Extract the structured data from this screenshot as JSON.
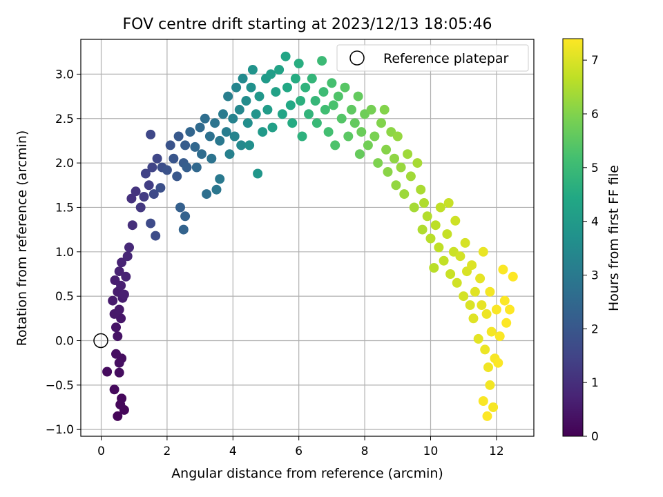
{
  "chart_data": {
    "type": "scatter",
    "title": "FOV centre drift starting at 2023/12/13 18:05:46",
    "xlabel": "Angular distance from reference (arcmin)",
    "ylabel": "Rotation from reference (arcmin)",
    "xlim": [
      -0.6,
      13.1
    ],
    "ylim": [
      -1.08,
      3.42
    ],
    "x_ticks": [
      "0",
      "2",
      "4",
      "6",
      "8",
      "10",
      "12"
    ],
    "y_ticks": [
      "−1.0",
      "−0.5",
      "0.0",
      "0.5",
      "1.0",
      "1.5",
      "2.0",
      "2.5",
      "3.0"
    ],
    "grid": true,
    "legend": {
      "position": "top-right",
      "label": "Reference platepar"
    },
    "reference_point": {
      "x": 0,
      "y": 0
    },
    "colorbar": {
      "label": "Hours from first FF file",
      "colormap": "viridis",
      "range": [
        0,
        7.4
      ],
      "ticks": [
        "0",
        "1",
        "2",
        "3",
        "4",
        "5",
        "6",
        "7"
      ]
    },
    "series": [
      {
        "points": [
          [
            0.5,
            -0.85,
            0.1
          ],
          [
            0.7,
            -0.78,
            0.12
          ],
          [
            0.58,
            -0.72,
            0.14
          ],
          [
            0.62,
            -0.65,
            0.15
          ],
          [
            0.4,
            -0.55,
            0.18
          ],
          [
            0.18,
            -0.35,
            0.22
          ],
          [
            0.55,
            -0.36,
            0.25
          ],
          [
            0.62,
            -0.2,
            0.27
          ],
          [
            0.45,
            -0.15,
            0.29
          ],
          [
            0.55,
            -0.25,
            0.3
          ],
          [
            0.5,
            0.05,
            0.38
          ],
          [
            0.45,
            0.15,
            0.4
          ],
          [
            0.6,
            0.25,
            0.45
          ],
          [
            0.4,
            0.3,
            0.48
          ],
          [
            0.55,
            0.35,
            0.5
          ],
          [
            0.35,
            0.45,
            0.55
          ],
          [
            0.5,
            0.55,
            0.58
          ],
          [
            0.65,
            0.48,
            0.6
          ],
          [
            0.42,
            0.68,
            0.62
          ],
          [
            0.6,
            0.62,
            0.65
          ],
          [
            0.7,
            0.52,
            0.66
          ],
          [
            0.55,
            0.78,
            0.7
          ],
          [
            0.75,
            0.72,
            0.72
          ],
          [
            0.62,
            0.88,
            0.75
          ],
          [
            0.8,
            0.95,
            0.8
          ],
          [
            0.85,
            1.05,
            0.85
          ],
          [
            0.95,
            1.3,
            1.0
          ],
          [
            0.92,
            1.6,
            1.05
          ],
          [
            1.05,
            1.68,
            1.1
          ],
          [
            1.2,
            1.5,
            1.2
          ],
          [
            1.3,
            1.62,
            1.3
          ],
          [
            1.45,
            1.75,
            1.35
          ],
          [
            1.35,
            1.88,
            1.45
          ],
          [
            1.55,
            1.95,
            1.5
          ],
          [
            1.5,
            2.32,
            1.6
          ],
          [
            1.7,
            2.05,
            1.55
          ],
          [
            1.6,
            1.65,
            1.65
          ],
          [
            1.5,
            1.32,
            1.68
          ],
          [
            1.65,
            1.18,
            1.7
          ],
          [
            1.85,
            1.95,
            1.75
          ],
          [
            1.8,
            1.72,
            1.8
          ],
          [
            2.0,
            1.92,
            1.85
          ],
          [
            2.1,
            2.2,
            1.9
          ],
          [
            2.2,
            2.05,
            1.95
          ],
          [
            2.3,
            1.85,
            2.0
          ],
          [
            2.35,
            2.3,
            2.05
          ],
          [
            2.5,
            2.0,
            2.1
          ],
          [
            2.55,
            2.2,
            2.15
          ],
          [
            2.6,
            1.95,
            2.2
          ],
          [
            2.4,
            1.5,
            2.25
          ],
          [
            2.55,
            1.4,
            2.3
          ],
          [
            2.5,
            1.25,
            2.35
          ],
          [
            2.7,
            2.35,
            2.4
          ],
          [
            2.85,
            2.18,
            2.45
          ],
          [
            2.9,
            1.95,
            2.5
          ],
          [
            3.0,
            2.4,
            2.55
          ],
          [
            3.05,
            2.1,
            2.6
          ],
          [
            3.15,
            2.5,
            2.65
          ],
          [
            3.2,
            1.65,
            2.7
          ],
          [
            3.3,
            2.3,
            2.75
          ],
          [
            3.35,
            2.05,
            2.8
          ],
          [
            3.45,
            2.45,
            2.85
          ],
          [
            3.5,
            1.7,
            2.9
          ],
          [
            3.6,
            2.25,
            2.95
          ],
          [
            3.6,
            1.82,
            3.0
          ],
          [
            3.7,
            2.55,
            3.05
          ],
          [
            3.8,
            2.35,
            3.1
          ],
          [
            3.85,
            2.75,
            3.15
          ],
          [
            3.9,
            2.1,
            3.2
          ],
          [
            4.0,
            2.5,
            3.25
          ],
          [
            4.05,
            2.3,
            3.3
          ],
          [
            4.1,
            2.85,
            3.35
          ],
          [
            4.2,
            2.6,
            3.4
          ],
          [
            4.25,
            2.2,
            3.45
          ],
          [
            4.3,
            2.95,
            3.5
          ],
          [
            4.4,
            2.7,
            3.55
          ],
          [
            4.45,
            2.45,
            3.6
          ],
          [
            4.5,
            2.2,
            3.65
          ],
          [
            4.55,
            2.85,
            3.7
          ],
          [
            4.6,
            3.05,
            3.75
          ],
          [
            4.7,
            2.55,
            3.8
          ],
          [
            4.75,
            1.88,
            3.85
          ],
          [
            4.8,
            2.75,
            3.9
          ],
          [
            4.9,
            2.35,
            3.95
          ],
          [
            5.0,
            2.95,
            4.0
          ],
          [
            5.05,
            2.6,
            4.05
          ],
          [
            5.15,
            3.0,
            4.1
          ],
          [
            5.2,
            2.4,
            4.15
          ],
          [
            5.3,
            2.8,
            4.2
          ],
          [
            5.4,
            3.05,
            4.25
          ],
          [
            5.5,
            2.55,
            4.3
          ],
          [
            5.6,
            3.2,
            4.35
          ],
          [
            5.65,
            2.85,
            4.4
          ],
          [
            5.75,
            2.65,
            4.45
          ],
          [
            5.8,
            2.45,
            4.5
          ],
          [
            5.9,
            2.95,
            4.55
          ],
          [
            6.0,
            3.12,
            4.6
          ],
          [
            6.05,
            2.7,
            4.65
          ],
          [
            6.1,
            2.3,
            4.7
          ],
          [
            6.2,
            2.85,
            4.75
          ],
          [
            6.3,
            2.55,
            4.8
          ],
          [
            6.4,
            2.95,
            4.85
          ],
          [
            6.5,
            2.7,
            4.9
          ],
          [
            6.55,
            2.45,
            4.95
          ],
          [
            6.7,
            3.15,
            5.0
          ],
          [
            6.75,
            2.8,
            5.05
          ],
          [
            6.8,
            2.6,
            5.1
          ],
          [
            6.9,
            2.35,
            5.15
          ],
          [
            7.0,
            2.9,
            5.2
          ],
          [
            7.05,
            2.65,
            5.25
          ],
          [
            7.1,
            2.2,
            5.3
          ],
          [
            7.2,
            2.75,
            5.35
          ],
          [
            7.3,
            2.5,
            5.4
          ],
          [
            7.4,
            2.85,
            5.45
          ],
          [
            7.5,
            2.3,
            5.5
          ],
          [
            7.6,
            2.6,
            5.55
          ],
          [
            7.7,
            2.45,
            5.6
          ],
          [
            7.8,
            2.75,
            5.62
          ],
          [
            7.85,
            2.1,
            5.65
          ],
          [
            7.9,
            2.35,
            5.7
          ],
          [
            8.0,
            2.55,
            5.75
          ],
          [
            8.1,
            2.2,
            5.8
          ],
          [
            8.2,
            2.6,
            5.85
          ],
          [
            8.3,
            2.3,
            5.9
          ],
          [
            8.4,
            2.0,
            5.95
          ],
          [
            8.5,
            2.45,
            6.0
          ],
          [
            8.6,
            2.6,
            6.02
          ],
          [
            8.65,
            2.15,
            6.05
          ],
          [
            8.7,
            1.9,
            6.1
          ],
          [
            8.8,
            2.35,
            6.12
          ],
          [
            8.9,
            2.05,
            6.15
          ],
          [
            8.95,
            1.75,
            6.2
          ],
          [
            9.0,
            2.3,
            6.22
          ],
          [
            9.1,
            1.95,
            6.25
          ],
          [
            9.2,
            1.65,
            6.3
          ],
          [
            9.3,
            2.1,
            6.32
          ],
          [
            9.4,
            1.85,
            6.35
          ],
          [
            9.5,
            1.5,
            6.4
          ],
          [
            9.6,
            2.0,
            6.42
          ],
          [
            9.7,
            1.7,
            6.45
          ],
          [
            9.75,
            1.25,
            6.5
          ],
          [
            9.8,
            1.55,
            6.52
          ],
          [
            9.9,
            1.4,
            6.55
          ],
          [
            10.0,
            1.15,
            6.6
          ],
          [
            10.1,
            0.82,
            6.62
          ],
          [
            10.15,
            1.3,
            6.65
          ],
          [
            10.25,
            1.05,
            6.68
          ],
          [
            10.3,
            1.5,
            6.7
          ],
          [
            10.4,
            0.9,
            6.72
          ],
          [
            10.5,
            1.2,
            6.75
          ],
          [
            10.55,
            1.55,
            6.78
          ],
          [
            10.6,
            0.75,
            6.8
          ],
          [
            10.7,
            1.0,
            6.82
          ],
          [
            10.75,
            1.35,
            6.85
          ],
          [
            10.8,
            0.65,
            6.88
          ],
          [
            10.9,
            0.95,
            6.9
          ],
          [
            11.0,
            0.5,
            6.92
          ],
          [
            11.05,
            1.1,
            6.95
          ],
          [
            11.1,
            0.78,
            6.97
          ],
          [
            11.2,
            0.4,
            7.0
          ],
          [
            11.25,
            0.85,
            7.02
          ],
          [
            11.3,
            0.25,
            7.05
          ],
          [
            11.35,
            0.55,
            7.07
          ],
          [
            11.45,
            0.02,
            7.1
          ],
          [
            11.5,
            0.7,
            7.12
          ],
          [
            11.55,
            0.4,
            7.15
          ],
          [
            11.6,
            1.0,
            7.17
          ],
          [
            11.65,
            -0.1,
            7.2
          ],
          [
            11.7,
            0.3,
            7.22
          ],
          [
            11.75,
            -0.3,
            7.25
          ],
          [
            11.8,
            -0.5,
            7.27
          ],
          [
            11.8,
            0.55,
            7.28
          ],
          [
            11.85,
            0.1,
            7.3
          ],
          [
            11.9,
            -0.75,
            7.32
          ],
          [
            11.95,
            -0.2,
            7.33
          ],
          [
            12.0,
            0.35,
            7.35
          ],
          [
            12.1,
            0.05,
            7.36
          ],
          [
            12.2,
            0.8,
            7.37
          ],
          [
            12.25,
            0.45,
            7.38
          ],
          [
            12.4,
            0.35,
            7.4
          ],
          [
            12.5,
            0.72,
            7.4
          ],
          [
            11.72,
            -0.85,
            7.4
          ],
          [
            11.6,
            -0.68,
            7.35
          ],
          [
            12.05,
            -0.25,
            7.38
          ],
          [
            12.3,
            0.2,
            7.39
          ]
        ]
      }
    ]
  }
}
